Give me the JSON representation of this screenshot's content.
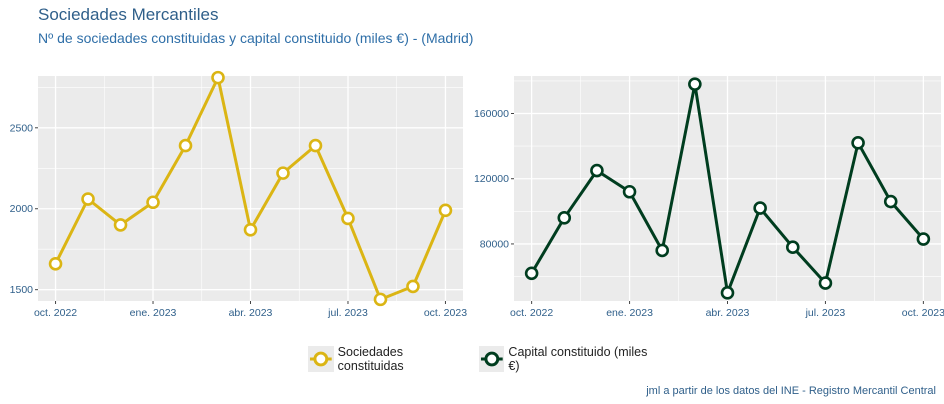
{
  "header": {
    "title": "Sociedades Mercantiles",
    "subtitle": "Nº de sociedades constituidas y capital constituido (miles €) - (Madrid)"
  },
  "caption": "jml a partir de los datos del INE - Registro Mercantil Central",
  "legend": {
    "items": [
      {
        "label": "Sociedades constituidas",
        "color": "#dbb514"
      },
      {
        "label": "Capital constituido (miles €)",
        "color": "#003d1f"
      }
    ]
  },
  "chart_data": [
    {
      "type": "line",
      "series": [
        {
          "name": "Sociedades constituidas",
          "color": "#dbb514",
          "values": [
            1660,
            2060,
            1900,
            2040,
            2390,
            2810,
            1870,
            2220,
            2390,
            1940,
            1440,
            1520,
            1990
          ]
        }
      ],
      "x": [
        "2022-10",
        "2022-11",
        "2022-12",
        "2023-01",
        "2023-02",
        "2023-03",
        "2023-04",
        "2023-05",
        "2023-06",
        "2023-07",
        "2023-08",
        "2023-09",
        "2023-10"
      ],
      "xticks": [
        "oct. 2022",
        "ene. 2023",
        "abr. 2023",
        "jul. 2023",
        "oct. 2023"
      ],
      "yticks": [
        "1500",
        "2000",
        "2500"
      ],
      "ylim": [
        1430,
        2820
      ],
      "grid": true
    },
    {
      "type": "line",
      "series": [
        {
          "name": "Capital constituido (miles €)",
          "color": "#003d1f",
          "values": [
            62000,
            96000,
            125000,
            112000,
            76000,
            178000,
            50000,
            102000,
            78000,
            56000,
            142000,
            106000,
            83000
          ]
        }
      ],
      "x": [
        "2022-10",
        "2022-11",
        "2022-12",
        "2023-01",
        "2023-02",
        "2023-03",
        "2023-04",
        "2023-05",
        "2023-06",
        "2023-07",
        "2023-08",
        "2023-09",
        "2023-10"
      ],
      "xticks": [
        "oct. 2022",
        "ene. 2023",
        "abr. 2023",
        "jul. 2023",
        "oct. 2023"
      ],
      "yticks": [
        "80000",
        "120000",
        "160000"
      ],
      "ylim": [
        45000,
        183000
      ],
      "grid": true
    }
  ]
}
